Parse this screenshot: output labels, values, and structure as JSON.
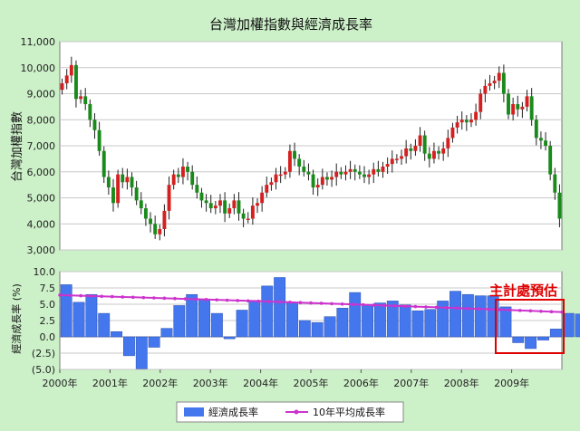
{
  "chart_data": [
    {
      "type": "candlestick",
      "title": "台灣加權指數與經濟成長率",
      "ylabel": "台灣加權指數",
      "ylim": [
        3000,
        11000
      ],
      "yticks": [
        "3,000",
        "4,000",
        "5,000",
        "6,000",
        "7,000",
        "8,000",
        "9,000",
        "10,000",
        "11,000"
      ],
      "grid": true,
      "colors": {
        "up": "#d42020",
        "down": "#1a8a1a"
      },
      "monthly_close": [
        9400,
        9700,
        10100,
        8800,
        8900,
        8600,
        8000,
        7600,
        6800,
        5800,
        5400,
        4800,
        5900,
        5600,
        5800,
        5400,
        4900,
        4600,
        4200,
        4000,
        3600,
        3800,
        4500,
        5500,
        5900,
        5800,
        6200,
        6000,
        5500,
        5200,
        4900,
        4800,
        4600,
        4700,
        4900,
        4400,
        4600,
        4900,
        4400,
        4200,
        4200,
        4700,
        4800,
        5200,
        5500,
        5600,
        5900,
        5900,
        6000,
        6800,
        6500,
        6200,
        6000,
        5900,
        5400,
        5500,
        5800,
        5700,
        5800,
        6000,
        5900,
        6000,
        6100,
        6000,
        5900,
        5800,
        5900,
        6100,
        6000,
        6200,
        6300,
        6500,
        6500,
        6600,
        6900,
        6800,
        7000,
        7400,
        6700,
        6500,
        6800,
        6700,
        6900,
        7300,
        7700,
        7900,
        8000,
        7900,
        8000,
        8300,
        9000,
        9300,
        9400,
        9500,
        9800,
        9000,
        8200,
        8600,
        8400,
        8500,
        8900,
        8000,
        7300,
        7200,
        7000,
        5900,
        5200,
        4200
      ]
    },
    {
      "type": "bar+line",
      "ylabel": "經濟成長率 (%)",
      "ylim": [
        -5,
        10
      ],
      "yticks": [
        "10.0",
        "7.5",
        "5.0",
        "2.5",
        "0.0",
        "(2.5)",
        "(5.0)"
      ],
      "categories": [
        "2000年",
        "2001年",
        "2002年",
        "2003年",
        "2004年",
        "2005年",
        "2006年",
        "2007年",
        "2008年",
        "2009年"
      ],
      "series": [
        {
          "name": "經濟成長率",
          "type": "bar",
          "color": "#4477ee",
          "quarterly_values": [
            8.0,
            5.3,
            6.5,
            3.6,
            0.8,
            -2.9,
            -4.9,
            -1.6,
            1.3,
            4.8,
            6.5,
            5.7,
            3.6,
            -0.3,
            4.1,
            5.6,
            7.8,
            9.1,
            5.3,
            2.5,
            2.2,
            3.1,
            4.4,
            6.8,
            4.9,
            5.2,
            5.5,
            4.9,
            4.0,
            4.2,
            5.5,
            7.0,
            6.5,
            6.3,
            6.3,
            4.6,
            -0.9,
            -1.8,
            -0.5,
            1.2,
            3.6,
            3.5
          ]
        },
        {
          "name": "10年平均成長率",
          "type": "line",
          "color": "#cc33cc",
          "start": 6.4,
          "end": 3.8
        }
      ],
      "annotation": "主計處預估"
    }
  ]
}
